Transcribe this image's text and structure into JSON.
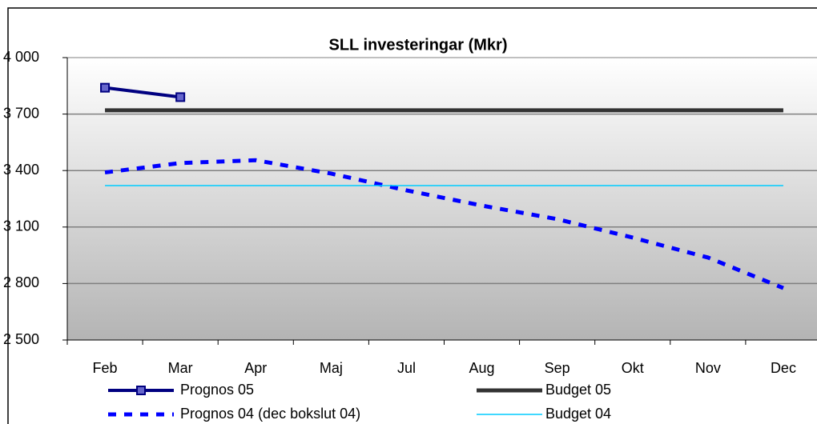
{
  "chart_data": {
    "type": "line",
    "title": "SLL investeringar (Mkr)",
    "categories": [
      "Feb",
      "Mar",
      "Apr",
      "Maj",
      "Jul",
      "Aug",
      "Sep",
      "Okt",
      "Nov",
      "Dec"
    ],
    "series": [
      {
        "name": "Prognos 05",
        "color": "#000080",
        "line_width": 4,
        "marker": "square",
        "values": [
          3840,
          3790,
          null,
          null,
          null,
          null,
          null,
          null,
          null,
          null
        ]
      },
      {
        "name": "Budget 05",
        "color": "#333333",
        "line_width": 5,
        "values": [
          3720,
          3720,
          3720,
          3720,
          3720,
          3720,
          3720,
          3720,
          3720,
          3720
        ]
      },
      {
        "name": "Prognos 04 (dec bokslut 04)",
        "color": "#0000ff",
        "line_width": 5,
        "dashed": true,
        "values": [
          3390,
          3440,
          3455,
          3384,
          3295,
          3214,
          3142,
          3044,
          2938,
          2776
        ]
      },
      {
        "name": "Budget 04",
        "color": "#00ccff",
        "line_width": 1.5,
        "values": [
          3320,
          3320,
          3320,
          3320,
          3320,
          3320,
          3320,
          3320,
          3320,
          3320
        ]
      }
    ],
    "ylim": [
      2500,
      4000
    ],
    "yticks": [
      {
        "value": 2500,
        "label": "2 500"
      },
      {
        "value": 2800,
        "label": "2 800"
      },
      {
        "value": 3100,
        "label": "3 100"
      },
      {
        "value": 3400,
        "label": "3 400"
      },
      {
        "value": 3700,
        "label": "3 700"
      },
      {
        "value": 4000,
        "label": "4 000"
      }
    ],
    "grid": true
  }
}
